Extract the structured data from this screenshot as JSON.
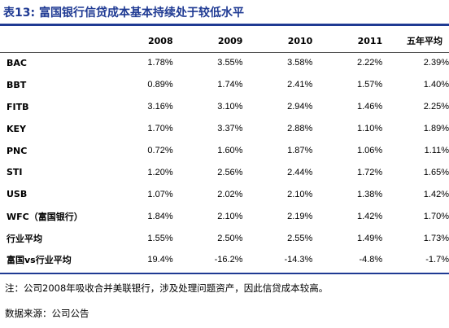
{
  "title": "表13: 富国银行信贷成本基本持续处于较低水平",
  "table": {
    "columns": [
      "",
      "2008",
      "2009",
      "2010",
      "2011",
      "五年平均"
    ],
    "rows": [
      {
        "label": "BAC",
        "values": [
          "1.78%",
          "3.55%",
          "3.58%",
          "2.22%",
          "2.39%"
        ]
      },
      {
        "label": "BBT",
        "values": [
          "0.89%",
          "1.74%",
          "2.41%",
          "1.57%",
          "1.40%"
        ]
      },
      {
        "label": "FITB",
        "values": [
          "3.16%",
          "3.10%",
          "2.94%",
          "1.46%",
          "2.25%"
        ]
      },
      {
        "label": "KEY",
        "values": [
          "1.70%",
          "3.37%",
          "2.88%",
          "1.10%",
          "1.89%"
        ]
      },
      {
        "label": "PNC",
        "values": [
          "0.72%",
          "1.60%",
          "1.87%",
          "1.06%",
          "1.11%"
        ]
      },
      {
        "label": "STI",
        "values": [
          "1.20%",
          "2.56%",
          "2.44%",
          "1.72%",
          "1.65%"
        ]
      },
      {
        "label": "USB",
        "values": [
          "1.07%",
          "2.02%",
          "2.10%",
          "1.38%",
          "1.42%"
        ]
      },
      {
        "label": "WFC（富国银行）",
        "values": [
          "1.84%",
          "2.10%",
          "2.19%",
          "1.42%",
          "1.70%"
        ]
      },
      {
        "label": "行业平均",
        "values": [
          "1.55%",
          "2.50%",
          "2.55%",
          "1.49%",
          "1.73%"
        ]
      },
      {
        "label": "富国vs行业平均",
        "values": [
          "19.4%",
          "-16.2%",
          "-14.3%",
          "-4.8%",
          "-1.7%"
        ]
      }
    ]
  },
  "note": "注：公司2008年吸收合并美联银行，涉及处理问题资产，因此信贷成本较高。",
  "source": "数据来源：公司公告"
}
